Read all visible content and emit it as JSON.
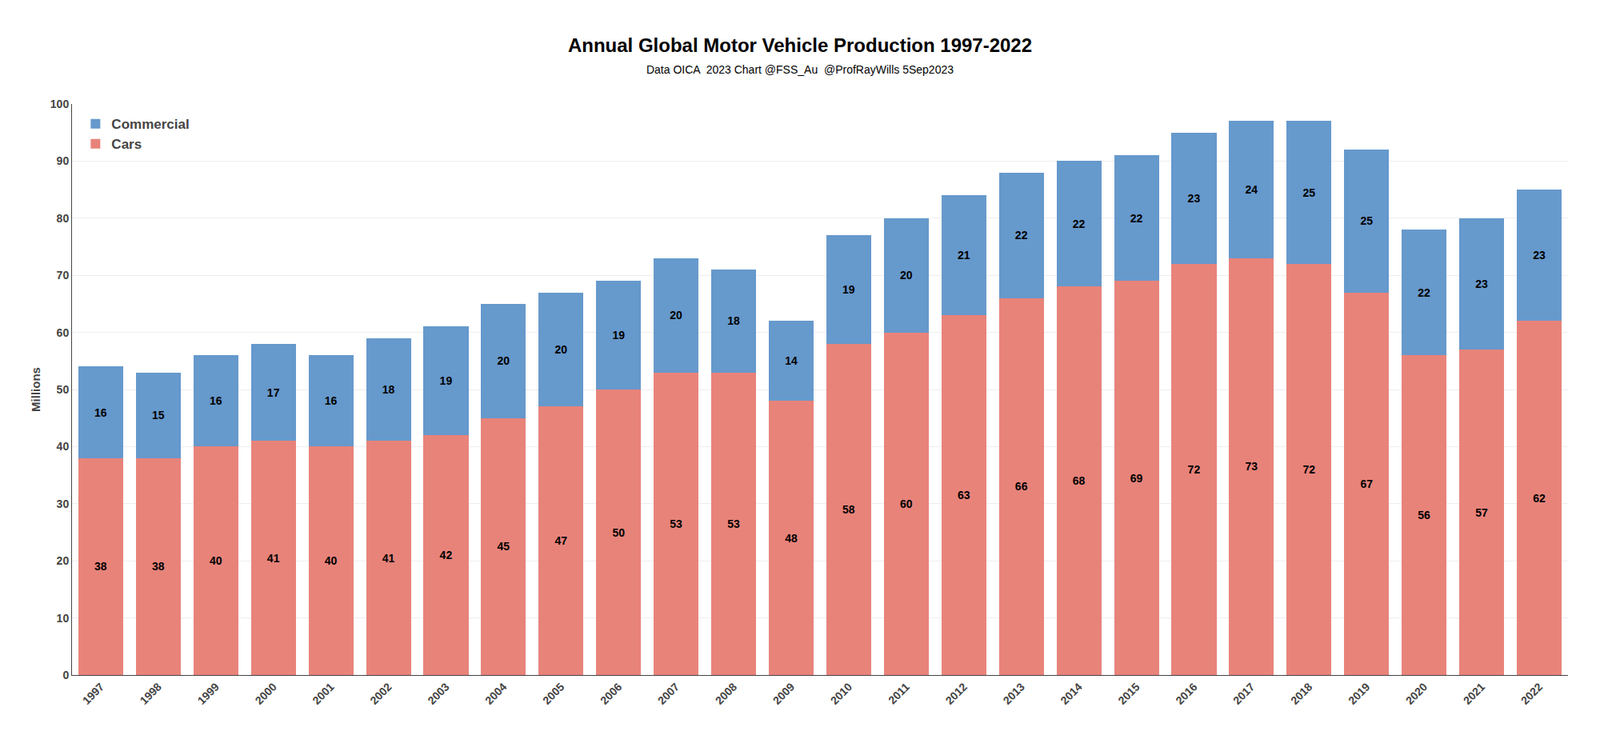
{
  "chart_data": {
    "type": "bar",
    "title": "Annual Global Motor Vehicle Production 1997-2022",
    "subtitle": "Data OICA  2023 Chart @FSS_Au  @ProfRayWills 5Sep2023",
    "y_label": "Millions",
    "categories": [
      "1997",
      "1998",
      "1999",
      "2000",
      "2001",
      "2002",
      "2003",
      "2004",
      "2005",
      "2006",
      "2007",
      "2008",
      "2009",
      "2010",
      "2011",
      "2012",
      "2013",
      "2014",
      "2015",
      "2016",
      "2017",
      "2018",
      "2019",
      "2020",
      "2021",
      "2022"
    ],
    "series": [
      {
        "name": "Cars",
        "color": "#E8837A",
        "values": [
          38,
          38,
          40,
          41,
          40,
          41,
          42,
          45,
          47,
          50,
          53,
          53,
          48,
          58,
          60,
          63,
          66,
          68,
          69,
          72,
          73,
          72,
          67,
          56,
          57,
          62
        ]
      },
      {
        "name": "Commercial",
        "color": "#6699CC",
        "values": [
          16,
          15,
          16,
          17,
          16,
          18,
          19,
          20,
          20,
          19,
          20,
          18,
          14,
          19,
          20,
          21,
          22,
          22,
          22,
          23,
          24,
          25,
          25,
          22,
          23,
          23
        ]
      }
    ],
    "stacked": true,
    "data_labels": true,
    "ylim": [
      0,
      100
    ],
    "yticks": [
      0,
      10,
      20,
      30,
      40,
      50,
      60,
      70,
      80,
      90,
      100
    ],
    "grid": true,
    "legend": "upper left"
  }
}
